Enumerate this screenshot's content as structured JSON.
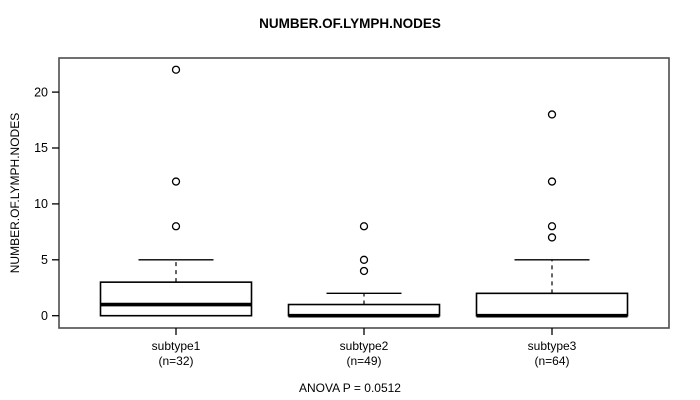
{
  "colors": {
    "foreground": "#000000",
    "frame": "#4d4d4d",
    "background": "#ffffff"
  },
  "chart_data": {
    "type": "boxplot",
    "title": "NUMBER.OF.LYMPH.NODES",
    "ylabel": "NUMBER.OF.LYMPH.NODES",
    "xlabel": "",
    "footer": "ANOVA P = 0.0512",
    "yticks": [
      0,
      5,
      10,
      15,
      20
    ],
    "ylim": [
      -1.1,
      23.05
    ],
    "grid": false,
    "legend": "none",
    "groups": [
      {
        "label": "subtype1",
        "n_label": "(n=32)",
        "n": 32,
        "q1": 0,
        "median": 1,
        "q3": 3,
        "whisker_low": 0,
        "whisker_high": 5,
        "outliers": [
          8,
          12,
          22
        ]
      },
      {
        "label": "subtype2",
        "n_label": "(n=49)",
        "n": 49,
        "q1": 0,
        "median": 0,
        "q3": 1,
        "whisker_low": 0,
        "whisker_high": 2,
        "outliers": [
          4,
          5,
          8
        ]
      },
      {
        "label": "subtype3",
        "n_label": "(n=64)",
        "n": 64,
        "q1": 0,
        "median": 0,
        "q3": 2,
        "whisker_low": 0,
        "whisker_high": 5,
        "outliers": [
          7,
          8,
          12,
          18
        ]
      }
    ]
  }
}
